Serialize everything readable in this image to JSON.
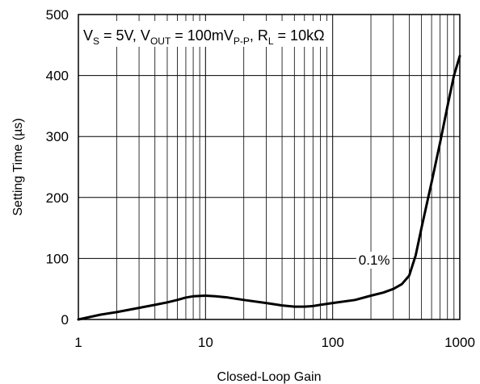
{
  "chart_data": {
    "type": "line",
    "title": "",
    "xlabel": "Closed-Loop Gain",
    "ylabel": "Setting Time (µs)",
    "x_scale": "log",
    "xlim": [
      1,
      1000
    ],
    "ylim": [
      0,
      500
    ],
    "grid": true,
    "x_ticks": [
      "1",
      "10",
      "100",
      "1000"
    ],
    "y_ticks": [
      "0",
      "100",
      "200",
      "300",
      "400",
      "500"
    ],
    "conditions": {
      "vs_main": "V",
      "vs_sub": "S",
      "vs_val": " = 5V, ",
      "vout_main": "V",
      "vout_sub": "OUT",
      "vout_val": " = 100mV",
      "vout_unit_sub": "P-P",
      "sep": ", ",
      "rl_main": "R",
      "rl_sub": "L",
      "rl_val": " = 10kΩ"
    },
    "series": [
      {
        "name": "0.1%",
        "x": [
          1,
          1.5,
          2,
          3,
          4,
          5,
          6,
          7,
          8,
          10,
          12,
          15,
          20,
          30,
          40,
          50,
          60,
          70,
          80,
          100,
          150,
          200,
          250,
          300,
          350,
          400,
          450,
          500,
          600,
          700,
          800,
          900,
          1000
        ],
        "y": [
          0,
          8,
          12,
          19,
          24,
          28,
          32,
          36,
          38,
          39,
          38,
          36,
          32,
          27,
          23,
          21,
          21,
          22,
          24,
          27,
          32,
          39,
          44,
          50,
          58,
          72,
          105,
          150,
          225,
          290,
          350,
          400,
          432
        ]
      }
    ]
  }
}
